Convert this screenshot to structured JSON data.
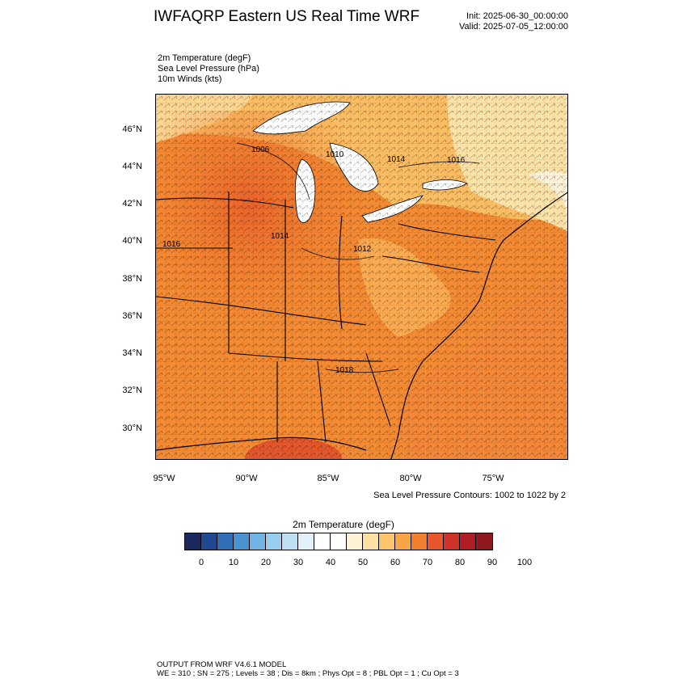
{
  "title": "IWFAQRP Eastern US Real Time WRF",
  "init": "Init: 2025-06-30_00:00:00",
  "valid": "Valid: 2025-07-05_12:00:00",
  "variables": [
    "2m Temperature   (degF)",
    "Sea Level Pressure   (hPa)",
    "10m Winds   (kts)"
  ],
  "lat_labels": [
    "46°N",
    "44°N",
    "42°N",
    "40°N",
    "38°N",
    "36°N",
    "34°N",
    "32°N",
    "30°N"
  ],
  "lon_labels": [
    "95°W",
    "90°W",
    "85°W",
    "80°W",
    "75°W"
  ],
  "isobar_labels": [
    "1006",
    "1010",
    "1014",
    "1016",
    "1014",
    "1016",
    "1012",
    "1018"
  ],
  "contour_note": "Sea Level Pressure Contours: 1002 to 1022 by 2",
  "colorbar": {
    "title": "2m Temperature  (degF)",
    "labels": [
      "0",
      "10",
      "20",
      "30",
      "40",
      "50",
      "60",
      "70",
      "80",
      "90",
      "100"
    ],
    "colors": [
      "#1a2a5e",
      "#1f4a93",
      "#2f6fb8",
      "#4b93cf",
      "#6fb4e2",
      "#99cdee",
      "#bfe0f4",
      "#e2f0f9",
      "#ffffff",
      "#ffffff",
      "#fff3d6",
      "#fee2a2",
      "#fdc66c",
      "#f9a445",
      "#f17f2b",
      "#e5572a",
      "#cf3226",
      "#b01d24",
      "#8e1a20"
    ]
  },
  "footer": {
    "line1": "OUTPUT FROM WRF V4.6.1 MODEL",
    "line2": "WE = 310 ; SN = 275 ; Levels = 38 ; Dis = 8km ; Phys Opt = 8 ; PBL Opt = 1 ; Cu Opt = 3"
  }
}
